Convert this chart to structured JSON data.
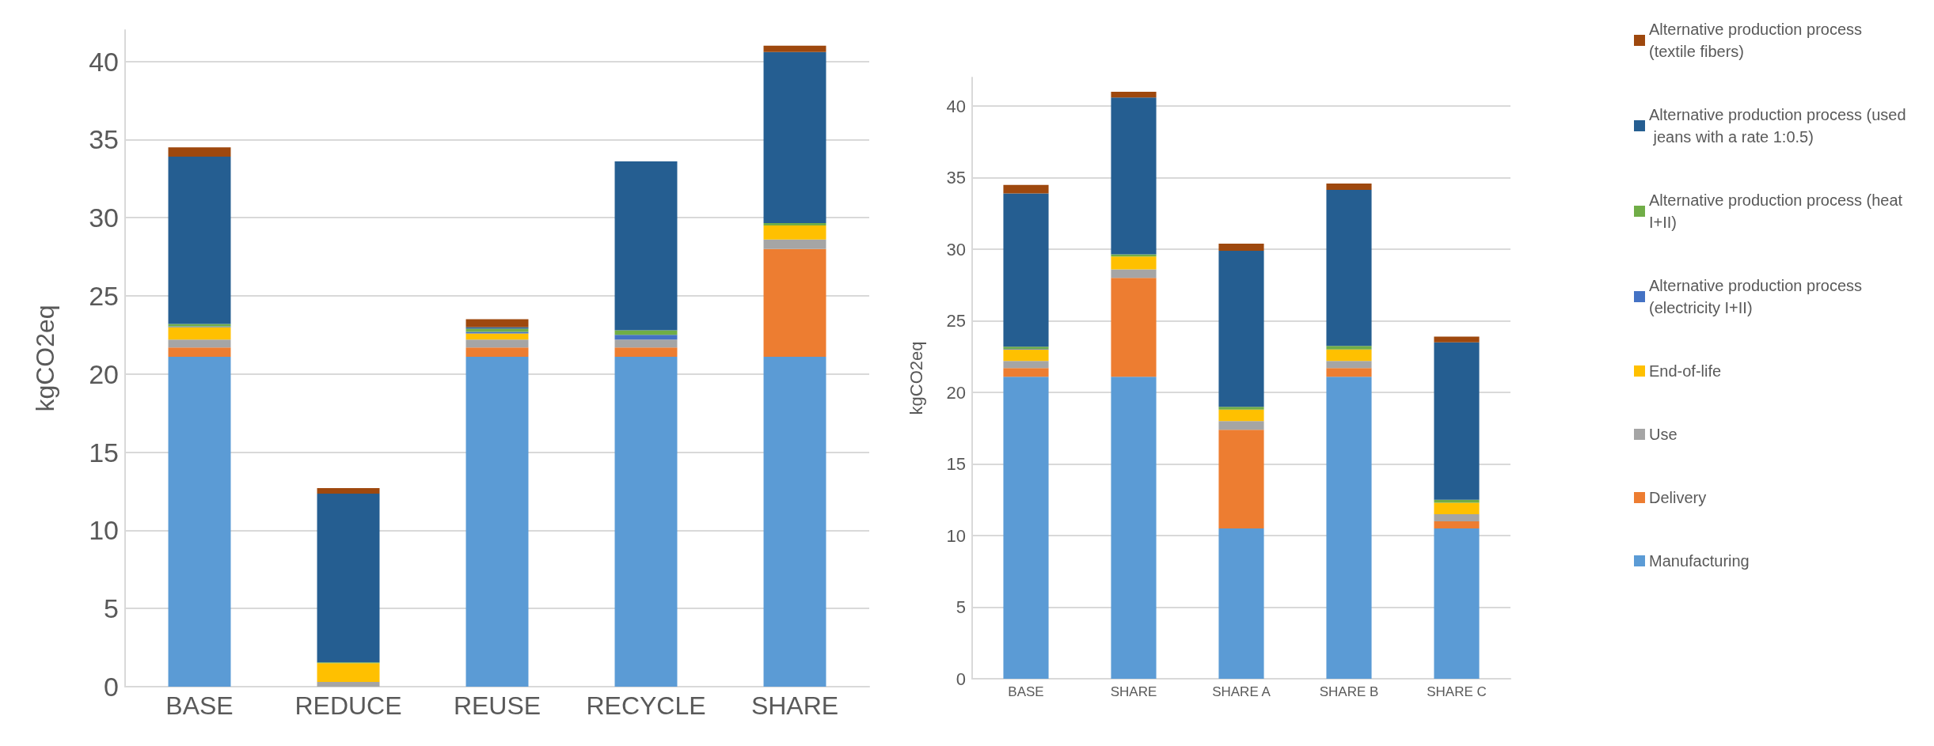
{
  "chart_data": [
    {
      "type": "bar",
      "stacked": true,
      "ylabel": "kgCO2eq",
      "categories": [
        "BASE",
        "REDUCE",
        "REUSE",
        "RECYCLE",
        "SHARE"
      ],
      "ylim": [
        0,
        42
      ],
      "yticks": [
        0,
        5,
        10,
        15,
        20,
        25,
        30,
        35,
        40
      ],
      "grid": "y",
      "legend": false,
      "series": [
        {
          "color": "#5b9bd5",
          "values": [
            21.1,
            0,
            21.1,
            21.1,
            21.1
          ]
        },
        {
          "color": "#ed7d31",
          "values": [
            0.6,
            0,
            0.6,
            0.6,
            6.9
          ]
        },
        {
          "color": "#a5a5a5",
          "values": [
            0.5,
            0.3,
            0.5,
            0.5,
            0.6
          ]
        },
        {
          "color": "#ffc000",
          "values": [
            0.8,
            1.2,
            0.4,
            0,
            0.9
          ]
        },
        {
          "color": "#4472c4",
          "values": [
            0.05,
            0,
            0.1,
            0.3,
            0
          ]
        },
        {
          "color": "#70ad47",
          "values": [
            0.15,
            0.05,
            0.2,
            0.3,
            0.15
          ]
        },
        {
          "color": "#255e91",
          "values": [
            10.7,
            10.8,
            0.1,
            10.8,
            10.95
          ]
        },
        {
          "color": "#9e480e",
          "values": [
            0.6,
            0.35,
            0.5,
            0,
            0.4
          ]
        }
      ]
    },
    {
      "type": "bar",
      "stacked": true,
      "ylabel": "kgCO2eq",
      "categories": [
        "BASE",
        "SHARE",
        "SHARE A",
        "SHARE B",
        "SHARE C"
      ],
      "ylim": [
        0,
        42
      ],
      "yticks": [
        0,
        5,
        10,
        15,
        20,
        25,
        30,
        35,
        40
      ],
      "grid": "y",
      "legend": "right",
      "series": [
        {
          "name": "Manufacturing",
          "color": "#5b9bd5",
          "values": [
            21.1,
            21.1,
            10.5,
            21.1,
            10.5
          ]
        },
        {
          "name": "Delivery",
          "color": "#ed7d31",
          "values": [
            0.6,
            6.9,
            6.9,
            0.6,
            0.5
          ]
        },
        {
          "name": "Use",
          "color": "#a5a5a5",
          "values": [
            0.5,
            0.6,
            0.6,
            0.5,
            0.5
          ]
        },
        {
          "name": "End-of-life",
          "color": "#ffc000",
          "values": [
            0.8,
            0.9,
            0.8,
            0.8,
            0.8
          ]
        },
        {
          "name": "Alternative production process (electricity I+II)",
          "color": "#4472c4",
          "values": [
            0.05,
            0,
            0,
            0,
            0
          ]
        },
        {
          "name": "Alternative production process (heat I+II)",
          "color": "#70ad47",
          "values": [
            0.15,
            0.15,
            0.2,
            0.25,
            0.2
          ]
        },
        {
          "name": "Alternative production process (used jeans with a rate 1:0.5)",
          "color": "#255e91",
          "values": [
            10.7,
            10.95,
            10.9,
            10.9,
            11.0
          ]
        },
        {
          "name": "Alternative production process (textile fibers)",
          "color": "#9e480e",
          "values": [
            0.6,
            0.4,
            0.5,
            0.45,
            0.4
          ]
        }
      ]
    }
  ]
}
